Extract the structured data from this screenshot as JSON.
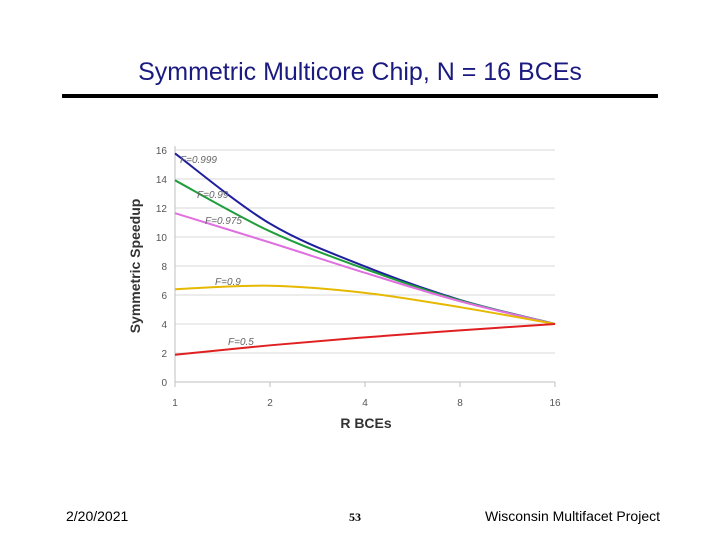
{
  "slide": {
    "title": "Symmetric Multicore Chip, N = 16 BCEs",
    "footer_date": "2/20/2021",
    "footer_page": "53",
    "footer_project": "Wisconsin Multifacet Project"
  },
  "chart_data": {
    "type": "line",
    "title": "",
    "xlabel": "R BCEs",
    "ylabel": "Symmetric Speedup",
    "x_scale": "log2",
    "categories": [
      "1",
      "2",
      "4",
      "8",
      "16"
    ],
    "yticks": [
      0,
      2,
      4,
      6,
      8,
      10,
      12,
      14,
      16
    ],
    "ylim": [
      0,
      16
    ],
    "grid": true,
    "series": [
      {
        "name": "F=0.999",
        "color": "#1f1f9e",
        "x": [
          1,
          2,
          4,
          8,
          16
        ],
        "values": [
          15.76,
          10.92,
          7.97,
          5.66,
          4.0
        ]
      },
      {
        "name": "F=0.99",
        "color": "#1f9e3c",
        "x": [
          1,
          2,
          4,
          8,
          16
        ],
        "values": [
          13.91,
          10.39,
          7.8,
          5.63,
          4.0
        ]
      },
      {
        "name": "F=0.975",
        "color": "#e070e0",
        "x": [
          1,
          2,
          4,
          8,
          16
        ],
        "values": [
          11.64,
          9.62,
          7.53,
          5.57,
          4.0
        ]
      },
      {
        "name": "F=0.9",
        "color": "#e6b800",
        "x": [
          1,
          2,
          4,
          8,
          16
        ],
        "values": [
          6.4,
          6.64,
          6.15,
          5.16,
          4.0
        ]
      },
      {
        "name": "F=0.5",
        "color": "#e02020",
        "x": [
          1,
          2,
          4,
          8,
          16
        ],
        "values": [
          1.88,
          2.53,
          3.08,
          3.56,
          4.0
        ]
      }
    ]
  }
}
